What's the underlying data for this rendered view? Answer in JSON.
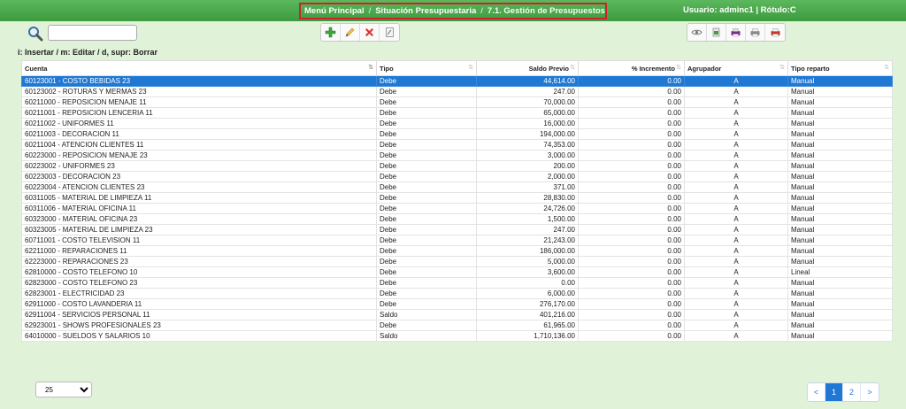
{
  "header": {
    "breadcrumb": [
      "Menú Principal",
      "Situación Presupuestaria",
      "7.1. Gestión de Presupuestos"
    ],
    "separator": "/",
    "user": "Usuario: adminc1 | Rótulo:C",
    "accent_color": "#4cae4c",
    "highlight_color": "#d0202b"
  },
  "search": {
    "value": "",
    "placeholder": ""
  },
  "toolbar_icons": [
    "add-icon",
    "edit-icon",
    "delete-icon",
    "clear-icon"
  ],
  "view_icons": [
    "eye-icon",
    "export-icon",
    "print-icon",
    "printer-icon",
    "pdf-icon"
  ],
  "shortcuts": "i: Insertar / m: Editar / d, supr: Borrar",
  "table": {
    "columns": [
      "Cuenta",
      "Tipo",
      "Saldo Previo",
      "% Incremento",
      "Agrupador",
      "Tipo reparto"
    ],
    "rows": [
      [
        "60123001 - COSTO BEBIDAS 23",
        "Debe",
        "44,614.00",
        "0.00",
        "A",
        "Manual"
      ],
      [
        "60123002 - ROTURAS Y MERMAS 23",
        "Debe",
        "247.00",
        "0.00",
        "A",
        "Manual"
      ],
      [
        "60211000 - REPOSICION MENAJE 11",
        "Debe",
        "70,000.00",
        "0.00",
        "A",
        "Manual"
      ],
      [
        "60211001 - REPOSICION LENCERIA 11",
        "Debe",
        "65,000.00",
        "0.00",
        "A",
        "Manual"
      ],
      [
        "60211002 - UNIFORMES 11",
        "Debe",
        "16,000.00",
        "0.00",
        "A",
        "Manual"
      ],
      [
        "60211003 - DECORACION 11",
        "Debe",
        "194,000.00",
        "0.00",
        "A",
        "Manual"
      ],
      [
        "60211004 - ATENCION CLIENTES 11",
        "Debe",
        "74,353.00",
        "0.00",
        "A",
        "Manual"
      ],
      [
        "60223000 - REPOSICION MENAJE 23",
        "Debe",
        "3,000.00",
        "0.00",
        "A",
        "Manual"
      ],
      [
        "60223002 - UNIFORMES 23",
        "Debe",
        "200.00",
        "0.00",
        "A",
        "Manual"
      ],
      [
        "60223003 - DECORACION 23",
        "Debe",
        "2,000.00",
        "0.00",
        "A",
        "Manual"
      ],
      [
        "60223004 - ATENCION CLIENTES 23",
        "Debe",
        "371.00",
        "0.00",
        "A",
        "Manual"
      ],
      [
        "60311005 - MATERIAL DE LIMPIEZA 11",
        "Debe",
        "28,830.00",
        "0.00",
        "A",
        "Manual"
      ],
      [
        "60311006 - MATERIAL OFICINA 11",
        "Debe",
        "24,726.00",
        "0.00",
        "A",
        "Manual"
      ],
      [
        "60323000 - MATERIAL OFICINA 23",
        "Debe",
        "1,500.00",
        "0.00",
        "A",
        "Manual"
      ],
      [
        "60323005 - MATERIAL DE LIMPIEZA 23",
        "Debe",
        "247.00",
        "0.00",
        "A",
        "Manual"
      ],
      [
        "60711001 - COSTO TELEVISION 11",
        "Debe",
        "21,243.00",
        "0.00",
        "A",
        "Manual"
      ],
      [
        "62211000 - REPARACIONES 11",
        "Debe",
        "186,000.00",
        "0.00",
        "A",
        "Manual"
      ],
      [
        "62223000 - REPARACIONES 23",
        "Debe",
        "5,000.00",
        "0.00",
        "A",
        "Manual"
      ],
      [
        "62810000 - COSTO TELEFONO 10",
        "Debe",
        "3,600.00",
        "0.00",
        "A",
        "Lineal"
      ],
      [
        "62823000 - COSTO TELEFONO 23",
        "Debe",
        "0.00",
        "0.00",
        "A",
        "Manual"
      ],
      [
        "62823001 - ELECTRICIDAD 23",
        "Debe",
        "6,000.00",
        "0.00",
        "A",
        "Manual"
      ],
      [
        "62911000 - COSTO LAVANDERIA 11",
        "Debe",
        "276,170.00",
        "0.00",
        "A",
        "Manual"
      ],
      [
        "62911004 - SERVICIOS PERSONAL 11",
        "Saldo",
        "401,216.00",
        "0.00",
        "A",
        "Manual"
      ],
      [
        "62923001 - SHOWS PROFESIONALES 23",
        "Debe",
        "61,965.00",
        "0.00",
        "A",
        "Manual"
      ],
      [
        "64010000 - SUELDOS Y SALARIOS 10",
        "Saldo",
        "1,710,136.00",
        "0.00",
        "A",
        "Manual"
      ]
    ],
    "selected_row": 0,
    "selected_color": "#1f78d4"
  },
  "footer": {
    "page_size": "25",
    "page_size_options": [
      "25"
    ],
    "pages": [
      "<",
      "1",
      "2",
      ">"
    ],
    "active_page": "1"
  }
}
